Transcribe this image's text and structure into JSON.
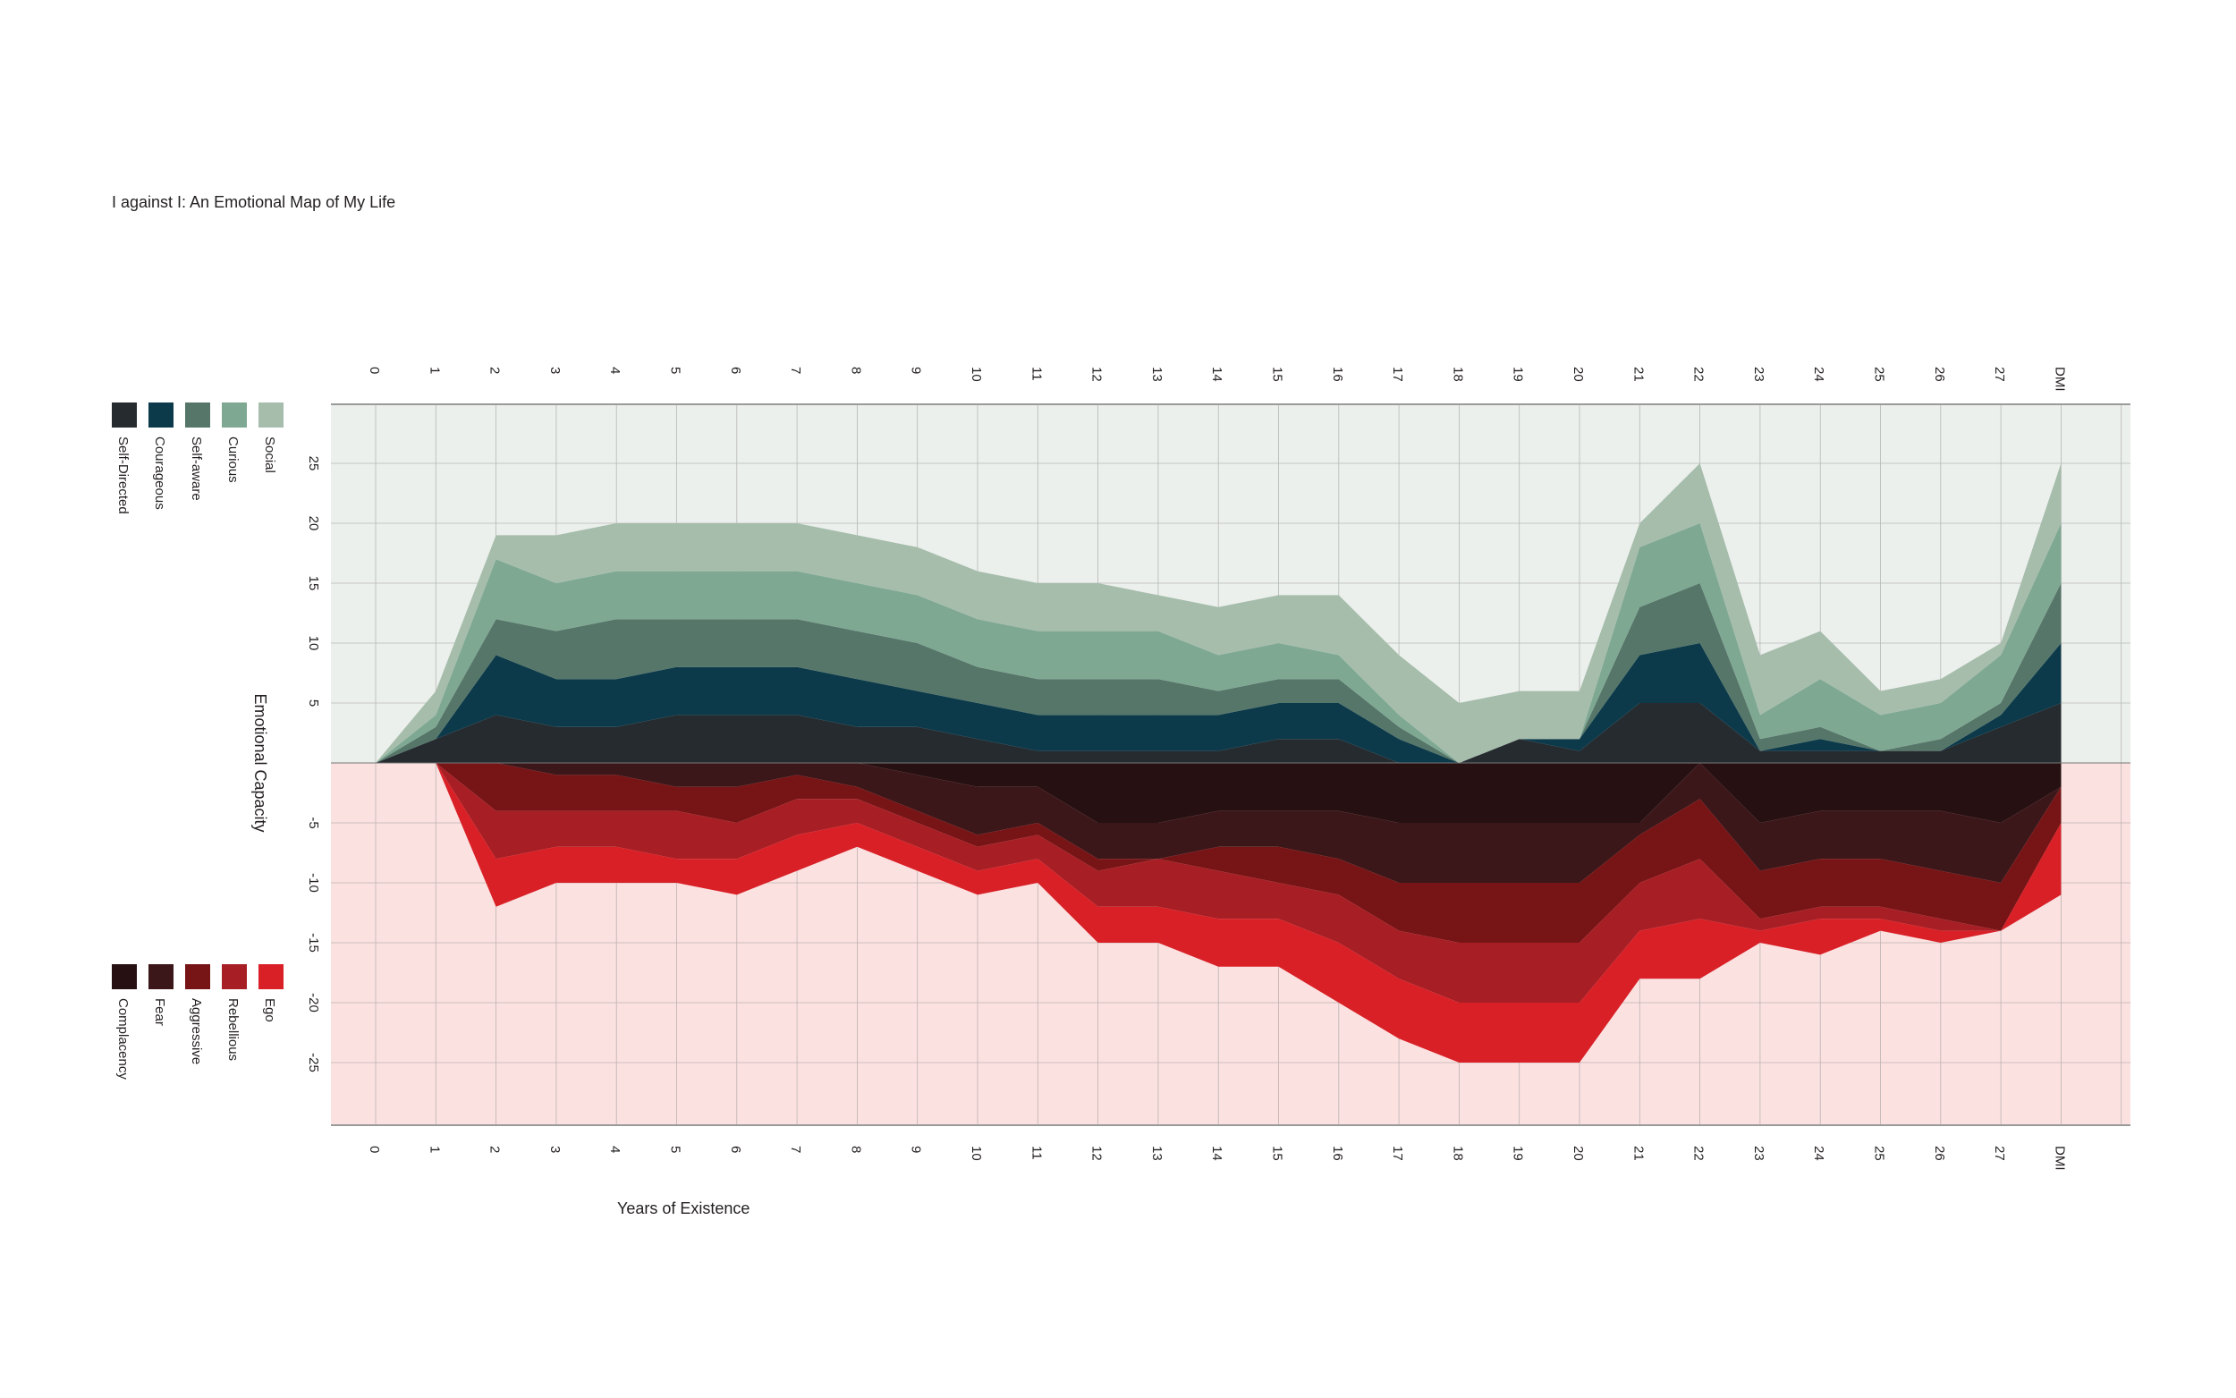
{
  "chart_data": {
    "type": "area",
    "title": "I against I: An Emotional Map of My Life",
    "xlabel": "Years of Existence",
    "ylabel": "Emotional Capacity",
    "categories": [
      "0",
      "1",
      "2",
      "3",
      "4",
      "5",
      "6",
      "7",
      "8",
      "9",
      "10",
      "11",
      "12",
      "13",
      "14",
      "15",
      "16",
      "17",
      "18",
      "19",
      "20",
      "21",
      "22",
      "23",
      "24",
      "25",
      "26",
      "27",
      "DMI"
    ],
    "y_ticks": [
      25,
      20,
      15,
      10,
      5,
      -5,
      -10,
      -15,
      -20,
      -25
    ],
    "ylim": [
      -30,
      30
    ],
    "grid": true,
    "legend_placement": "left",
    "positive_series": [
      {
        "name": "Self-Directed",
        "color": "#262b30",
        "values": [
          0,
          2,
          4,
          3,
          3,
          4,
          4,
          4,
          3,
          3,
          2,
          1,
          1,
          1,
          1,
          2,
          2,
          0,
          0,
          2,
          1,
          5,
          5,
          1,
          1,
          1,
          1,
          3,
          5
        ]
      },
      {
        "name": "Courageous",
        "color": "#0d3a4a",
        "values": [
          0,
          0,
          5,
          4,
          4,
          4,
          4,
          4,
          4,
          3,
          3,
          3,
          3,
          3,
          3,
          3,
          3,
          2,
          0,
          0,
          1,
          4,
          5,
          0,
          1,
          0,
          0,
          1,
          5
        ]
      },
      {
        "name": "Self-aware",
        "color": "#557669",
        "values": [
          0,
          1,
          3,
          4,
          5,
          4,
          4,
          4,
          4,
          4,
          3,
          3,
          3,
          3,
          2,
          2,
          2,
          1,
          0,
          0,
          0,
          4,
          5,
          1,
          1,
          0,
          1,
          1,
          5
        ]
      },
      {
        "name": "Curious",
        "color": "#7fa893",
        "values": [
          0,
          1,
          5,
          4,
          4,
          4,
          4,
          4,
          4,
          4,
          4,
          4,
          4,
          4,
          3,
          3,
          2,
          1,
          0,
          0,
          0,
          5,
          5,
          2,
          4,
          3,
          3,
          4,
          5
        ]
      },
      {
        "name": "Social",
        "color": "#a6bdac",
        "values": [
          0,
          2,
          2,
          4,
          4,
          4,
          4,
          4,
          4,
          4,
          4,
          4,
          4,
          3,
          4,
          4,
          5,
          5,
          5,
          4,
          4,
          2,
          5,
          5,
          4,
          2,
          2,
          1,
          5
        ]
      }
    ],
    "negative_series": [
      {
        "name": "Complacency",
        "color": "#271012",
        "values": [
          0,
          0,
          0,
          0,
          0,
          0,
          0,
          0,
          0,
          1,
          2,
          2,
          5,
          5,
          4,
          4,
          4,
          5,
          5,
          5,
          5,
          5,
          0,
          5,
          4,
          4,
          4,
          5,
          2
        ]
      },
      {
        "name": "Fear",
        "color": "#3c1719",
        "values": [
          0,
          0,
          0,
          1,
          1,
          2,
          2,
          1,
          2,
          3,
          4,
          3,
          3,
          3,
          3,
          3,
          4,
          5,
          5,
          5,
          5,
          1,
          3,
          4,
          4,
          4,
          5,
          5,
          0
        ]
      },
      {
        "name": "Aggressive",
        "color": "#771416",
        "values": [
          0,
          0,
          4,
          3,
          3,
          2,
          3,
          2,
          1,
          1,
          1,
          1,
          1,
          0,
          2,
          3,
          3,
          4,
          5,
          5,
          5,
          4,
          5,
          4,
          4,
          4,
          4,
          4,
          3
        ]
      },
      {
        "name": "Rebellious",
        "color": "#a71f25",
        "values": [
          0,
          0,
          4,
          3,
          3,
          4,
          3,
          3,
          2,
          2,
          2,
          2,
          3,
          4,
          4,
          3,
          4,
          4,
          5,
          5,
          5,
          4,
          5,
          1,
          1,
          1,
          1,
          0,
          0
        ]
      },
      {
        "name": "Ego",
        "color": "#d92027",
        "values": [
          0,
          0,
          4,
          3,
          3,
          2,
          3,
          3,
          2,
          2,
          2,
          2,
          3,
          3,
          4,
          4,
          5,
          5,
          5,
          5,
          5,
          4,
          5,
          1,
          3,
          1,
          1,
          0,
          6
        ]
      }
    ],
    "positive_background": "#ecf0ec",
    "negative_background": "#fbe2e1"
  }
}
